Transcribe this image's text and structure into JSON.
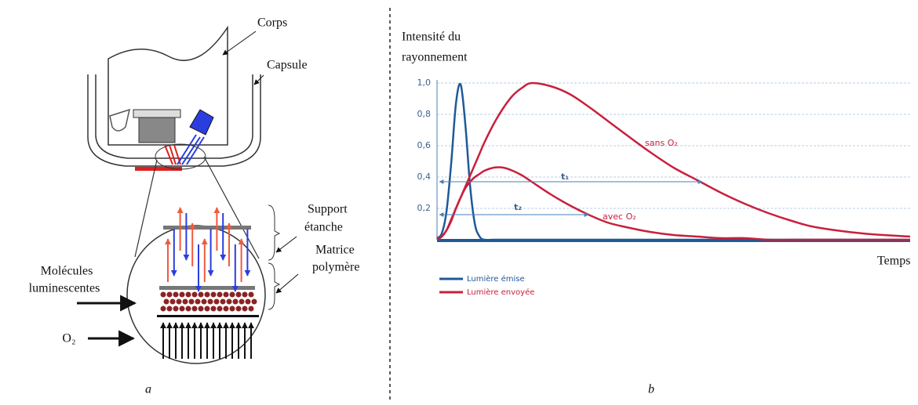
{
  "diagram": {
    "labels": {
      "corps": "Corps",
      "capsule": "Capsule",
      "support": [
        "Support",
        "étanche"
      ],
      "matrice": [
        "Matrice",
        "polymère"
      ],
      "molecules": [
        "Molécules",
        "luminescentes"
      ],
      "o2": "O₂"
    },
    "caption": "a"
  },
  "chart_data": {
    "type": "line",
    "caption": "b",
    "y_label": [
      "Intensité du",
      "rayonnement"
    ],
    "x_label": "Temps",
    "x": [
      0,
      1,
      2,
      3,
      4,
      5,
      6,
      7,
      8,
      9,
      10,
      12,
      14,
      16,
      18,
      20,
      24,
      28,
      32,
      36,
      40,
      45,
      50,
      55,
      60,
      65,
      70,
      75,
      80,
      90,
      100
    ],
    "xlim": [
      0,
      100
    ],
    "ylim": [
      0,
      1
    ],
    "yticks": [
      {
        "value": 0.2,
        "label": "0,2"
      },
      {
        "value": 0.4,
        "label": "0,4"
      },
      {
        "value": 0.6,
        "label": "0,6"
      },
      {
        "value": 0.8,
        "label": "0,8"
      },
      {
        "value": 1,
        "label": "1,0"
      }
    ],
    "grid": true,
    "series": [
      {
        "name": "Lumière émise",
        "color": "#1f5a96",
        "values": [
          0.01,
          0.04,
          0.18,
          0.49,
          0.87,
          0.99,
          0.73,
          0.34,
          0.1,
          0.02,
          0,
          0,
          0,
          0,
          0,
          0,
          0,
          0,
          0,
          0,
          0,
          0,
          0,
          0,
          0,
          0,
          0,
          0,
          0,
          0,
          0
        ]
      },
      {
        "name": "Lumière envoyée",
        "label": "sans O₂",
        "color": "#c8203c",
        "values": [
          0,
          0.02,
          0.06,
          0.13,
          0.2,
          0.27,
          0.34,
          0.41,
          0.48,
          0.55,
          0.62,
          0.74,
          0.84,
          0.92,
          0.97,
          1.0,
          0.98,
          0.93,
          0.85,
          0.76,
          0.67,
          0.56,
          0.46,
          0.38,
          0.3,
          0.23,
          0.17,
          0.12,
          0.08,
          0.04,
          0.02
        ]
      },
      {
        "name": "Lumière envoyée",
        "label": "avec O₂",
        "color": "#c8203c",
        "values": [
          0,
          0.02,
          0.06,
          0.12,
          0.2,
          0.27,
          0.33,
          0.37,
          0.4,
          0.42,
          0.44,
          0.46,
          0.46,
          0.44,
          0.41,
          0.37,
          0.29,
          0.22,
          0.16,
          0.11,
          0.08,
          0.05,
          0.03,
          0.02,
          0.01,
          0.01,
          0,
          0,
          0,
          0,
          0
        ]
      }
    ],
    "annotations": [
      "t₁",
      "t₂"
    ]
  }
}
